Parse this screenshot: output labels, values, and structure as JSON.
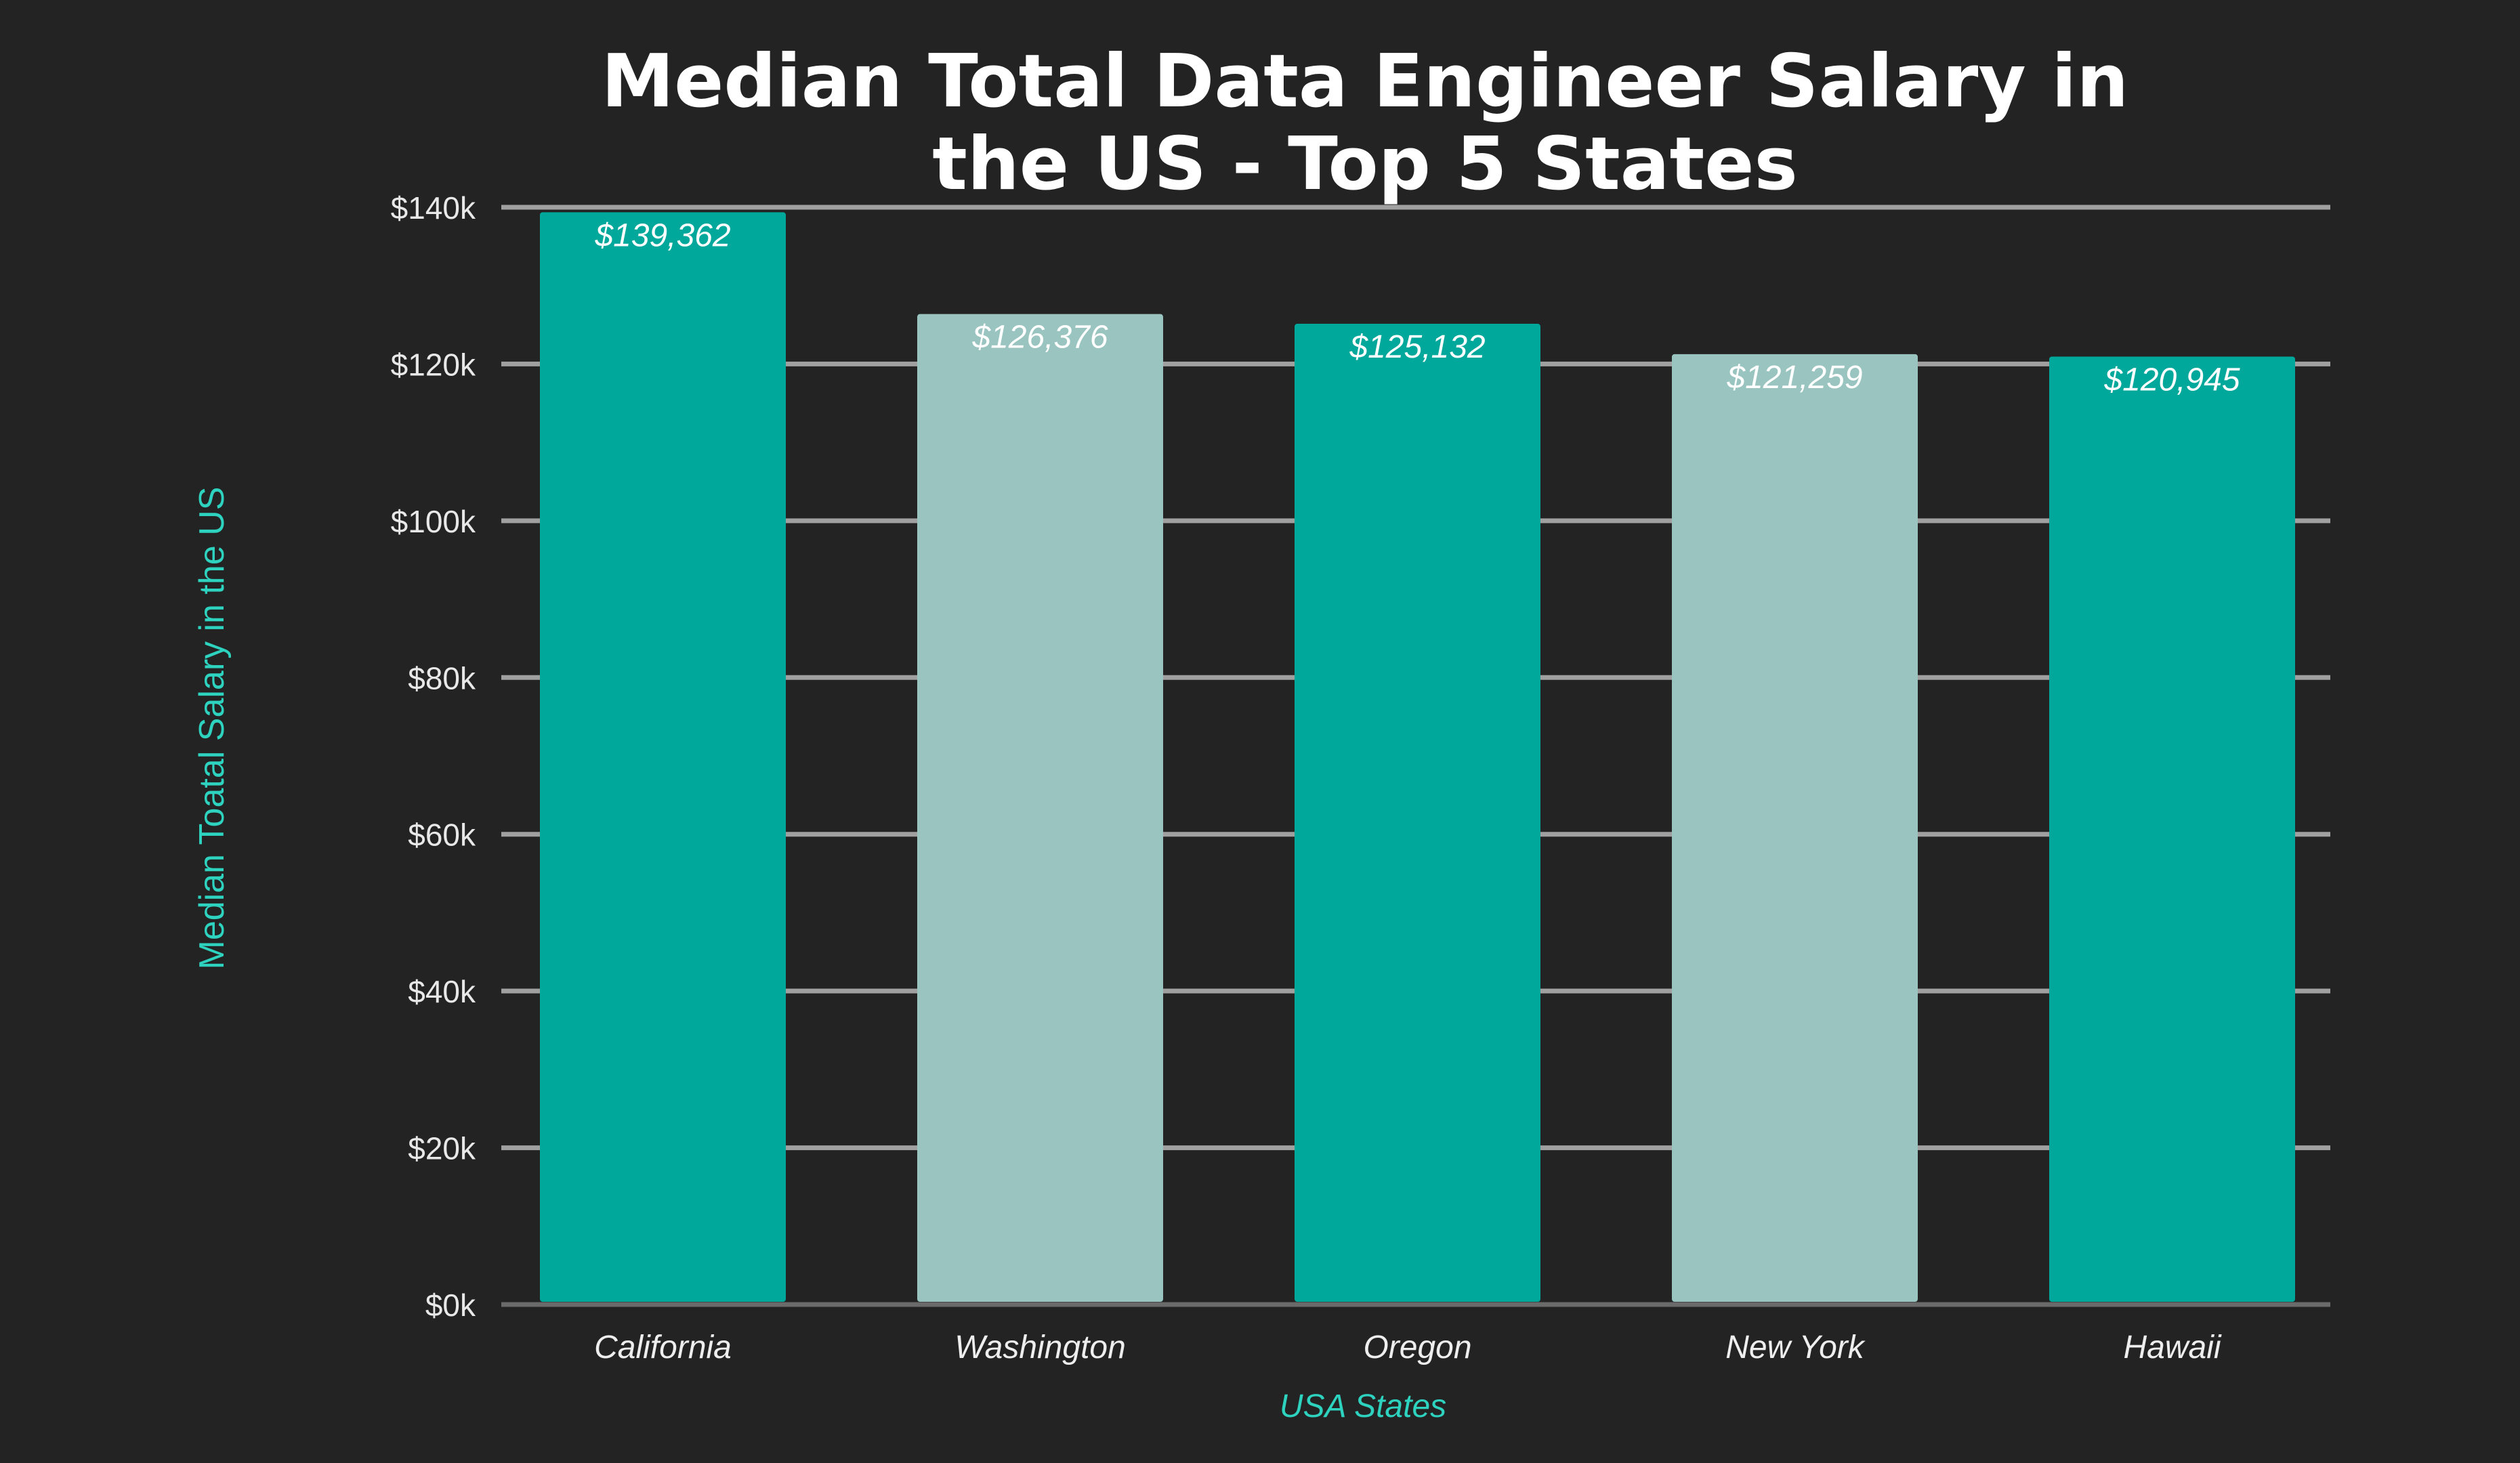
{
  "chart_data": {
    "type": "bar",
    "title_lines": [
      "Median Total Data Engineer Salary in",
      "the US -  Top 5 States"
    ],
    "xlabel": "USA States",
    "ylabel": "Median Toatal Salary in the US",
    "categories": [
      "California",
      "Washington",
      "Oregon",
      "New York",
      "Hawaii"
    ],
    "values": [
      139362,
      126376,
      125132,
      121259,
      120945
    ],
    "data_labels": [
      "$139,362",
      "$126,376",
      "$125,132",
      "$121,259",
      "$120,945"
    ],
    "ylim": [
      0,
      140000
    ],
    "yticks": [
      0,
      20000,
      40000,
      60000,
      80000,
      100000,
      120000,
      140000
    ],
    "ytick_labels": [
      "$0k",
      "$20k",
      "$40k",
      "$60k",
      "$80k",
      "$100k",
      "$120k",
      "$140k"
    ],
    "grid": true,
    "colors": [
      "#00a89c",
      "#99c4bf",
      "#00a89c",
      "#99c4bf",
      "#00a89c"
    ],
    "background": "#232323",
    "grid_color": "#a0a0a0",
    "axis_label_color": "#2ed3c0"
  }
}
